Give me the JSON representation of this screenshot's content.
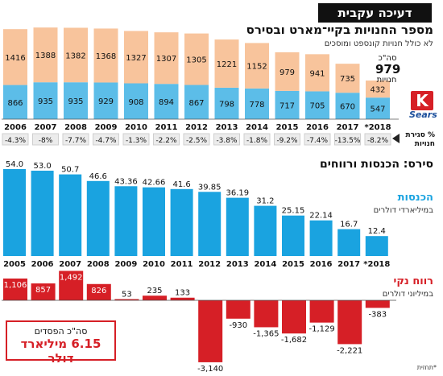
{
  "header_tag": "דעיכה עקבית",
  "section1": {
    "title": "מספר החנויות בקיי־מארט ובסירס",
    "subtitle": "לא כולל חנויות קונספט ומוסכים",
    "total_label": "סה\"כ",
    "total_value": "979",
    "total_unit": "חנויות",
    "change_label_l1": "% סגירת",
    "change_label_l2": "חנויות",
    "kmart_name": "kmart",
    "sears_name": "Sears"
  },
  "section2": {
    "title": "סירס: הכנסות ורווחים",
    "revenue_label": "הכנסות",
    "revenue_unit": "במיליארדי דולרים",
    "profit_label": "רווח נקי",
    "profit_unit": "במיליוני דולרים",
    "loss_total_l1": "סה\"כ הפסדים",
    "loss_total_l2": "6.15 מיליארד דולר",
    "footnote": "*תחזית"
  },
  "colors": {
    "kmart": "#f8c49c",
    "sears": "#5cbde8",
    "revenue": "#1aa3e0",
    "profit": "#d61f26",
    "accent": "#d61f26"
  },
  "chart_data": [
    {
      "type": "bar",
      "stacked": true,
      "categories": [
        "2006",
        "2007",
        "2008",
        "2009",
        "2010",
        "2011",
        "2012",
        "2013",
        "2014",
        "2015",
        "2016",
        "2017",
        "*2018"
      ],
      "series": [
        {
          "name": "Sears",
          "values": [
            866,
            935,
            935,
            929,
            908,
            894,
            867,
            798,
            778,
            717,
            705,
            670,
            547
          ]
        },
        {
          "name": "kmart",
          "values": [
            1416,
            1388,
            1382,
            1368,
            1327,
            1307,
            1305,
            1221,
            1152,
            979,
            941,
            735,
            432
          ]
        }
      ],
      "store_closing_pct": [
        "-4.3%",
        "-8%",
        "-7.7%",
        "-4.7%",
        "-1.3%",
        "-2.2%",
        "-2.5%",
        "-3.8%",
        "-1.8%",
        "-9.2%",
        "-7.4%",
        "-13.5%",
        "-8.2%"
      ],
      "title": "מספר החנויות בקיי־מארט ובסירס"
    },
    {
      "type": "bar",
      "categories": [
        "2005",
        "2006",
        "2007",
        "2008",
        "2009",
        "2010",
        "2011",
        "2012",
        "2013",
        "2014",
        "2015",
        "2016",
        "2017",
        "*2018"
      ],
      "values": [
        54.0,
        53.0,
        50.7,
        46.6,
        43.36,
        42.66,
        41.6,
        39.85,
        36.19,
        31.2,
        25.15,
        22.14,
        16.7,
        12.4
      ],
      "labels": [
        "54.0",
        "53.0",
        "50.7",
        "46.6",
        "43.36",
        "42.66",
        "41.6",
        "39.85",
        "36.19",
        "31.2",
        "25.15",
        "22.14",
        "16.7",
        "12.4"
      ],
      "ylabel": "במיליארדי דולרים",
      "title": "הכנסות",
      "ylim": [
        0,
        54
      ]
    },
    {
      "type": "bar",
      "categories": [
        "2005",
        "2006",
        "2007",
        "2008",
        "2009",
        "2010",
        "2011",
        "2012",
        "2013",
        "2014",
        "2015",
        "2016",
        "2017",
        "*2018"
      ],
      "values": [
        1106,
        857,
        1492,
        826,
        53,
        235,
        133,
        -3140,
        -930,
        -1365,
        -1682,
        -1129,
        -2221,
        -383
      ],
      "labels": [
        "1,106",
        "857",
        "1,492",
        "826",
        "53",
        "235",
        "133",
        "-3,140",
        "-930",
        "-1,365",
        "-1,682",
        "-1,129",
        "-2,221",
        "-383"
      ],
      "ylabel": "במיליוני דולרים",
      "title": "רווח נקי"
    }
  ]
}
